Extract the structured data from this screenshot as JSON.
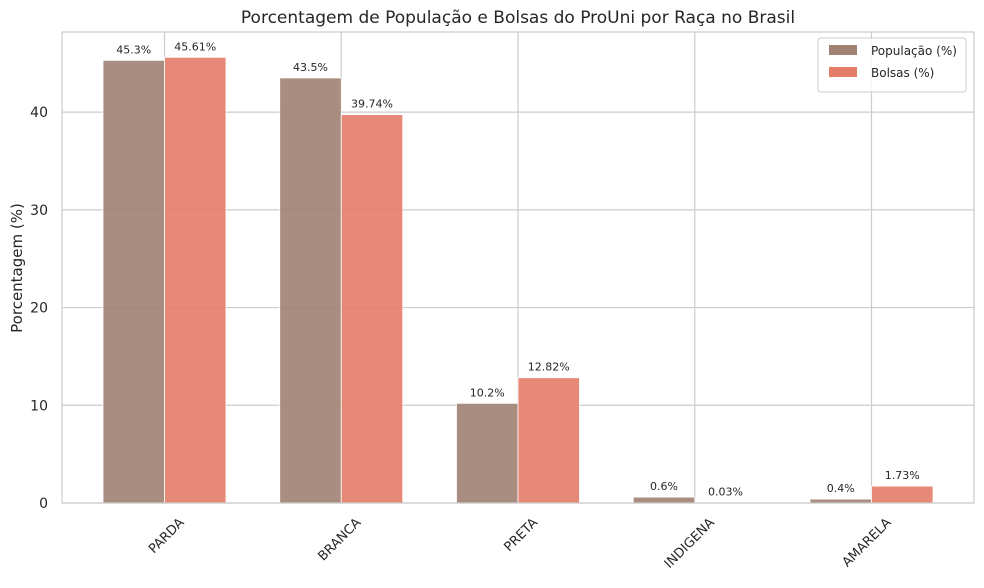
{
  "chart_data": {
    "type": "bar",
    "title": "Porcentagem de População e Bolsas do ProUni por Raça no Brasil",
    "xlabel": "",
    "ylabel": "Porcentagem (%)",
    "categories": [
      "PARDA",
      "BRANCA",
      "PRETA",
      "INDIGENA",
      "AMARELA"
    ],
    "series": [
      {
        "name": "População (%)",
        "values": [
          45.3,
          43.5,
          10.2,
          0.6,
          0.4
        ],
        "labels": [
          "45.3%",
          "43.5%",
          "10.2%",
          "0.6%",
          "0.4%"
        ],
        "color": "#a08172"
      },
      {
        "name": "Bolsas (%)",
        "values": [
          45.61,
          39.74,
          12.82,
          0.03,
          1.73
        ],
        "labels": [
          "45.61%",
          "39.74%",
          "12.82%",
          "0.03%",
          "1.73%"
        ],
        "color": "#e47c68"
      }
    ],
    "ylim": [
      0,
      48.2
    ],
    "yticks": [
      0,
      10,
      20,
      30,
      40
    ],
    "grid": true,
    "legend_position": "top-right"
  }
}
